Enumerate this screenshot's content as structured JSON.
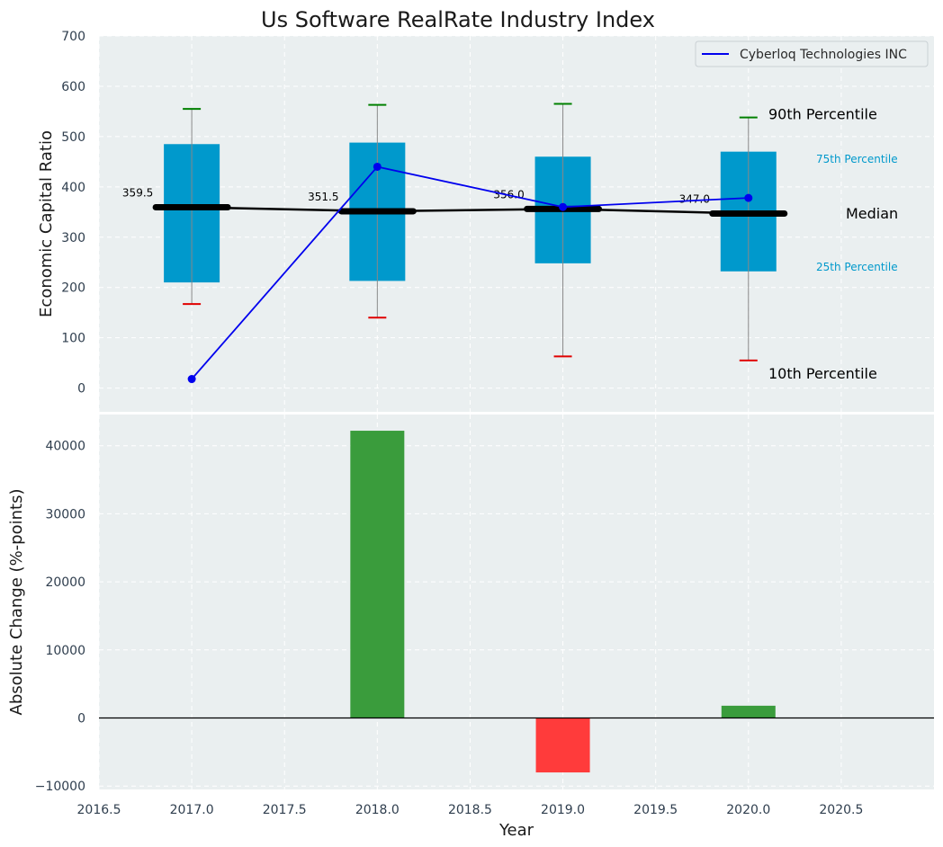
{
  "title": "Us Software RealRate Industry Index",
  "colors": {
    "panel_bg": "#eaeff0",
    "grid": "#ffffff",
    "box": "#0099cc",
    "median": "#000000",
    "whisker": "#888888",
    "cap_high": "#008000",
    "cap_low": "#e00000",
    "company_line": "#0000ee",
    "bar_positive": "#3a9c3c",
    "bar_negative": "#ff3b3b",
    "percentile_small": "#0099cc"
  },
  "chart_data": [
    {
      "type": "box",
      "ylabel": "Economic Capital Ratio",
      "xlim": [
        2016.5,
        2021.0
      ],
      "ylim": [
        -50,
        700
      ],
      "yticks": [
        0,
        100,
        200,
        300,
        400,
        500,
        600,
        700
      ],
      "grid": true,
      "legend": {
        "placement": "top-right",
        "entries": [
          "Cyberloq Technologies INC"
        ]
      },
      "boxes": [
        {
          "x": 2017.0,
          "p10": 167,
          "p25": 210,
          "median": 359.5,
          "p75": 485,
          "p90": 555,
          "median_label": "359.5"
        },
        {
          "x": 2018.0,
          "p10": 140,
          "p25": 213,
          "median": 351.5,
          "p75": 488,
          "p90": 563,
          "median_label": "351.5"
        },
        {
          "x": 2019.0,
          "p10": 63,
          "p25": 248,
          "median": 356.0,
          "p75": 460,
          "p90": 565,
          "median_label": "356.0"
        },
        {
          "x": 2020.0,
          "p10": 55,
          "p25": 232,
          "median": 347.0,
          "p75": 470,
          "p90": 538,
          "median_label": "347.0"
        }
      ],
      "series": [
        {
          "name": "Cyberloq Technologies INC",
          "x": [
            2017.0,
            2018.0,
            2019.0,
            2020.0
          ],
          "values": [
            18,
            440,
            360,
            378
          ]
        }
      ],
      "annotations": {
        "p90": "90th Percentile",
        "p75": "75th Percentile",
        "median": "Median",
        "p25": "25th Percentile",
        "p10": "10th Percentile"
      }
    },
    {
      "type": "bar",
      "xlabel": "Year",
      "ylabel": "Absolute Change (%-points)",
      "xlim": [
        2016.5,
        2021.0
      ],
      "ylim": [
        -10000,
        45000
      ],
      "yticks": [
        -10000,
        0,
        10000,
        20000,
        30000,
        40000
      ],
      "ytick_labels": [
        "−10000",
        "0",
        "10000",
        "20000",
        "30000",
        "40000"
      ],
      "xticks": [
        2016.5,
        2017.0,
        2017.5,
        2018.0,
        2018.5,
        2019.0,
        2019.5,
        2020.0,
        2020.5
      ],
      "xtick_labels": [
        "2016.5",
        "2017.0",
        "2017.5",
        "2018.0",
        "2018.5",
        "2019.0",
        "2019.5",
        "2020.0",
        "2020.5"
      ],
      "grid": true,
      "x": [
        2018.0,
        2019.0,
        2020.0
      ],
      "values": [
        42200,
        -8000,
        1800
      ]
    }
  ]
}
